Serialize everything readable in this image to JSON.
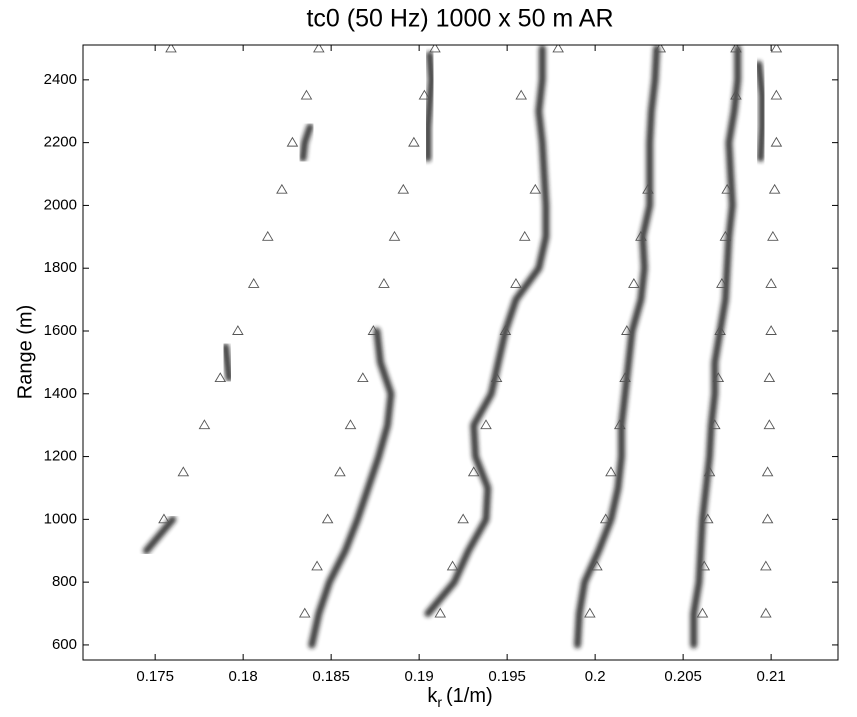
{
  "chart_data": {
    "type": "scatter",
    "title": "tc0 (50 Hz) 1000 x 50 m AR",
    "xlabel": {
      "base": "k",
      "sub": "r",
      "unit": "(1/m)"
    },
    "ylabel": "Range (m)",
    "xlim": [
      0.1709,
      0.2138
    ],
    "ylim": [
      552,
      2511
    ],
    "xticks": [
      0.175,
      0.18,
      0.185,
      0.19,
      0.195,
      0.2,
      0.205,
      0.21
    ],
    "yticks": [
      600,
      800,
      1000,
      1200,
      1400,
      1600,
      1800,
      2000,
      2200,
      2400
    ],
    "series": [
      {
        "style": "ridge",
        "color": "#1a1a1a",
        "x": [
          0.1745,
          0.176
        ],
        "y": [
          900,
          1000
        ]
      },
      {
        "style": "ridge",
        "color": "#1a1a1a",
        "x": [
          0.1792,
          0.179
        ],
        "y": [
          1450,
          1550
        ]
      },
      {
        "style": "ridge",
        "color": "#1a1a1a",
        "x": [
          0.1839,
          0.1843,
          0.1849,
          0.1858,
          0.1865,
          0.1871,
          0.1877,
          0.1882,
          0.1884,
          0.1878,
          0.1876
        ],
        "y": [
          600,
          700,
          800,
          900,
          1000,
          1100,
          1200,
          1300,
          1400,
          1500,
          1600
        ]
      },
      {
        "style": "ridge",
        "color": "#1a1a1a",
        "x": [
          0.1834,
          0.1835,
          0.1838
        ],
        "y": [
          2150,
          2200,
          2250
        ]
      },
      {
        "style": "ridge",
        "color": "#1a1a1a",
        "x": [
          0.1905,
          0.1905,
          0.1907,
          0.1906
        ],
        "y": [
          2150,
          2250,
          2400,
          2480
        ]
      },
      {
        "style": "ridge",
        "color": "#1a1a1a",
        "x": [
          0.1905,
          0.192,
          0.1928,
          0.1938,
          0.1939,
          0.1932,
          0.1931,
          0.1941,
          0.1945,
          0.1949,
          0.1955,
          0.1968,
          0.1972,
          0.1972,
          0.1971,
          0.197,
          0.1968,
          0.197,
          0.197
        ],
        "y": [
          700,
          800,
          900,
          1000,
          1100,
          1200,
          1300,
          1400,
          1500,
          1600,
          1700,
          1800,
          1900,
          2000,
          2100,
          2200,
          2300,
          2400,
          2500
        ]
      },
      {
        "style": "ridge",
        "color": "#1a1a1a",
        "x": [
          0.199,
          0.1991,
          0.1994,
          0.2002,
          0.2009,
          0.2013,
          0.2015,
          0.2015,
          0.2017,
          0.2019,
          0.2021,
          0.2026,
          0.2028,
          0.2027,
          0.2031,
          0.2031,
          0.2031,
          0.2032,
          0.2034,
          0.2035
        ],
        "y": [
          600,
          700,
          800,
          900,
          1000,
          1100,
          1200,
          1300,
          1400,
          1500,
          1600,
          1700,
          1800,
          1900,
          2000,
          2100,
          2200,
          2300,
          2400,
          2500
        ]
      },
      {
        "style": "ridge",
        "color": "#1a1a1a",
        "x": [
          0.2056,
          0.2056,
          0.2059,
          0.206,
          0.2061,
          0.2063,
          0.2065,
          0.2066,
          0.2068,
          0.2068,
          0.2071,
          0.2074,
          0.2075,
          0.2076,
          0.2078,
          0.2077,
          0.2076,
          0.2079,
          0.2081,
          0.2081
        ],
        "y": [
          600,
          700,
          800,
          900,
          1000,
          1100,
          1200,
          1300,
          1400,
          1500,
          1600,
          1700,
          1800,
          1900,
          2000,
          2100,
          2200,
          2300,
          2400,
          2500
        ]
      },
      {
        "style": "ridge",
        "color": "#1a1a1a",
        "x": [
          0.2094,
          0.2095,
          0.2095,
          0.2093
        ],
        "y": [
          2150,
          2250,
          2350,
          2450
        ]
      },
      {
        "style": "triangle",
        "color": "#555555",
        "x": [
          0.1759,
          0.1836,
          0.1828,
          0.1822,
          0.1814,
          0.1806,
          0.1797,
          0.1787,
          0.1778,
          0.1766,
          0.1755
        ],
        "y": [
          2500,
          2350,
          2200,
          2050,
          1900,
          1750,
          1600,
          1450,
          1300,
          1150,
          1000
        ]
      },
      {
        "style": "triangle",
        "color": "#555555",
        "x": [
          0.1843,
          0.1903,
          0.1897,
          0.1891,
          0.1886,
          0.188,
          0.1874,
          0.1868,
          0.1861,
          0.1855,
          0.1848,
          0.1842,
          0.1835
        ],
        "y": [
          2500,
          2350,
          2200,
          2050,
          1900,
          1750,
          1600,
          1450,
          1300,
          1150,
          1000,
          850,
          700
        ]
      },
      {
        "style": "triangle",
        "color": "#555555",
        "x": [
          0.1909,
          0.1979,
          0.1958,
          0.1966,
          0.196,
          0.1955,
          0.1949,
          0.1944,
          0.1938,
          0.1931,
          0.1925,
          0.1919,
          0.1912
        ],
        "y": [
          2500,
          2500,
          2350,
          2050,
          1900,
          1750,
          1600,
          1450,
          1300,
          1150,
          1000,
          850,
          700
        ]
      },
      {
        "style": "triangle",
        "color": "#555555",
        "x": [
          0.2037,
          0.203,
          0.2026,
          0.2022,
          0.2018,
          0.2017,
          0.2014,
          0.2009,
          0.2006,
          0.2001,
          0.1997
        ],
        "y": [
          2500,
          2050,
          1900,
          1750,
          1600,
          1450,
          1300,
          1150,
          1000,
          850,
          700
        ]
      },
      {
        "style": "triangle",
        "color": "#555555",
        "x": [
          0.208,
          0.208,
          0.2075,
          0.2074,
          0.2072,
          0.2071,
          0.207,
          0.2068,
          0.2065,
          0.2064,
          0.2062,
          0.2061
        ],
        "y": [
          2500,
          2350,
          2050,
          1900,
          1750,
          1600,
          1450,
          1300,
          1150,
          1000,
          850,
          700
        ]
      },
      {
        "style": "triangle",
        "color": "#555555",
        "x": [
          0.2103,
          0.2103,
          0.2103,
          0.2102,
          0.2101,
          0.21,
          0.21,
          0.2099,
          0.2099,
          0.2098,
          0.2098,
          0.2097,
          0.2097
        ],
        "y": [
          2500,
          2350,
          2200,
          2050,
          1900,
          1750,
          1600,
          1450,
          1300,
          1150,
          1000,
          850,
          700
        ]
      }
    ]
  }
}
